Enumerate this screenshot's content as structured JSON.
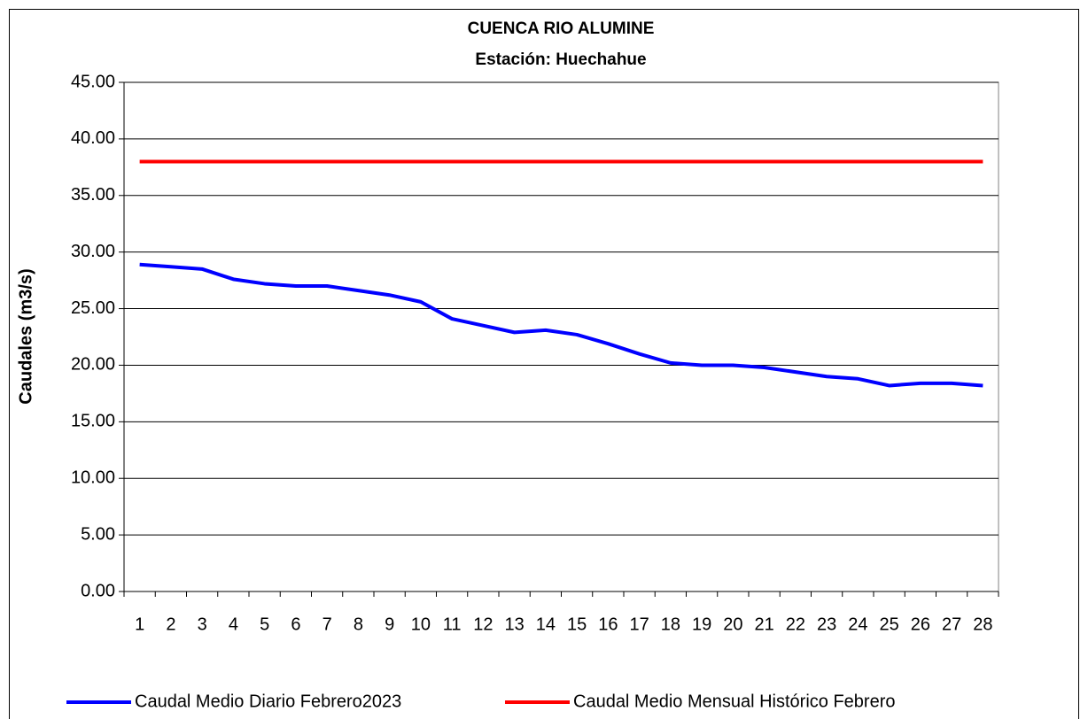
{
  "chart_data": {
    "type": "line",
    "title": "CUENCA RIO ALUMINE",
    "subtitle": "Estación: Huechahue",
    "y_label": "Caudales (m3/s)",
    "categories": [
      "1",
      "2",
      "3",
      "4",
      "5",
      "6",
      "7",
      "8",
      "9",
      "10",
      "11",
      "12",
      "13",
      "14",
      "15",
      "16",
      "17",
      "18",
      "19",
      "20",
      "21",
      "22",
      "23",
      "24",
      "25",
      "26",
      "27",
      "28"
    ],
    "series": [
      {
        "name": "Caudal Medio Diario Febrero2023",
        "color": "#0000ff",
        "values": [
          28.9,
          28.7,
          28.5,
          27.6,
          27.2,
          27.0,
          27.0,
          26.6,
          26.2,
          25.6,
          24.1,
          23.5,
          22.9,
          23.1,
          22.7,
          21.9,
          21.0,
          20.2,
          20.0,
          20.0,
          19.8,
          19.4,
          19.0,
          18.8,
          18.2,
          18.4,
          18.4,
          18.2
        ]
      },
      {
        "name": "Caudal Medio Mensual Histórico Febrero",
        "color": "#ff0000",
        "values": [
          38.0,
          38.0,
          38.0,
          38.0,
          38.0,
          38.0,
          38.0,
          38.0,
          38.0,
          38.0,
          38.0,
          38.0,
          38.0,
          38.0,
          38.0,
          38.0,
          38.0,
          38.0,
          38.0,
          38.0,
          38.0,
          38.0,
          38.0,
          38.0,
          38.0,
          38.0,
          38.0,
          38.0
        ]
      }
    ],
    "ylim": [
      0,
      45
    ],
    "yticks": [
      {
        "value": 0,
        "label": "0.00"
      },
      {
        "value": 5,
        "label": "5.00"
      },
      {
        "value": 10,
        "label": "10.00"
      },
      {
        "value": 15,
        "label": "15.00"
      },
      {
        "value": 20,
        "label": "20.00"
      },
      {
        "value": 25,
        "label": "25.00"
      },
      {
        "value": 30,
        "label": "30.00"
      },
      {
        "value": 35,
        "label": "35.00"
      },
      {
        "value": 40,
        "label": "40.00"
      },
      {
        "value": 45,
        "label": "45.00"
      }
    ],
    "grid": true,
    "legend": "bottom"
  }
}
